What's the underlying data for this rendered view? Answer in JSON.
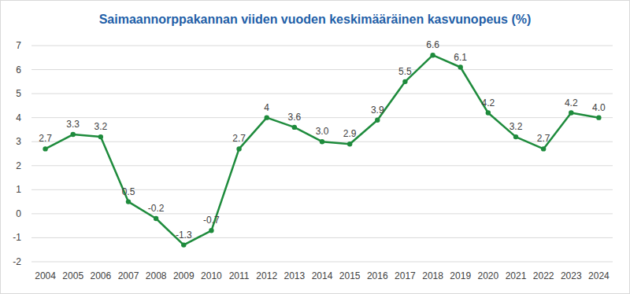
{
  "chart_data": {
    "type": "line",
    "title": "Saimaannorppakannan viiden vuoden keskimääräinen kasvunopeus (%)",
    "categories": [
      "2004",
      "2005",
      "2006",
      "2007",
      "2008",
      "2009",
      "2010",
      "2011",
      "2012",
      "2013",
      "2014",
      "2015",
      "2016",
      "2017",
      "2018",
      "2019",
      "2020",
      "2021",
      "2022",
      "2023",
      "2024"
    ],
    "values": [
      2.7,
      3.3,
      3.2,
      0.5,
      -0.2,
      -1.3,
      -0.7,
      2.7,
      4,
      3.6,
      3.0,
      2.9,
      3.9,
      5.5,
      6.6,
      6.1,
      4.2,
      3.2,
      2.7,
      4.2,
      4.0
    ],
    "value_labels": [
      "2.7",
      "3.3",
      "3.2",
      "0.5",
      "-0.2",
      "-1.3",
      "-0.7",
      "2.7",
      "4",
      "3.6",
      "3.0",
      "2.9",
      "3.9",
      "5.5",
      "6.6",
      "6.1",
      "4.2",
      "3.2",
      "2.7",
      "4.2",
      "4.0"
    ],
    "color": "#1e8b3c",
    "marker": "circle",
    "line_style": "solid",
    "ylim": [
      -2,
      7
    ],
    "yticks": [
      -2,
      -1,
      0,
      1,
      2,
      3,
      4,
      5,
      6,
      7
    ],
    "grid": true,
    "data_labels": true
  }
}
